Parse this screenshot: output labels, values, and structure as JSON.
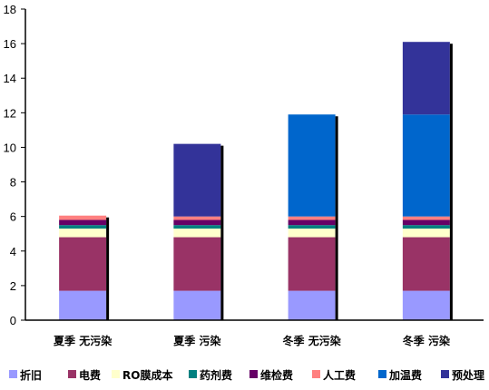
{
  "chart_data": {
    "type": "bar",
    "stacked": true,
    "categories": [
      "夏季 无污染",
      "夏季 污染",
      "冬季 无污染",
      "冬季 污染"
    ],
    "ylim": [
      0,
      18
    ],
    "yticks": [
      0,
      2,
      4,
      6,
      8,
      10,
      12,
      14,
      16,
      18
    ],
    "grid": false,
    "legend_position": "bottom",
    "series": [
      {
        "name": "折旧",
        "color": "#9999ff",
        "values": [
          1.7,
          1.7,
          1.7,
          1.7
        ]
      },
      {
        "name": "电费",
        "color": "#993366",
        "values": [
          3.1,
          3.1,
          3.1,
          3.1
        ]
      },
      {
        "name": "RO膜成本",
        "color": "#ffffcc",
        "values": [
          0.5,
          0.5,
          0.5,
          0.5
        ]
      },
      {
        "name": "药剂费",
        "color": "#008080",
        "values": [
          0.2,
          0.2,
          0.2,
          0.2
        ]
      },
      {
        "name": "维检费",
        "color": "#660066",
        "values": [
          0.3,
          0.3,
          0.3,
          0.3
        ]
      },
      {
        "name": "人工费",
        "color": "#ff8080",
        "values": [
          0.25,
          0.2,
          0.2,
          0.2
        ]
      },
      {
        "name": "加温费",
        "color": "#0066cc",
        "values": [
          0,
          0,
          5.9,
          5.9
        ]
      },
      {
        "name": "预处理",
        "color": "#333399",
        "values": [
          0,
          4.2,
          0,
          4.2
        ]
      }
    ]
  }
}
